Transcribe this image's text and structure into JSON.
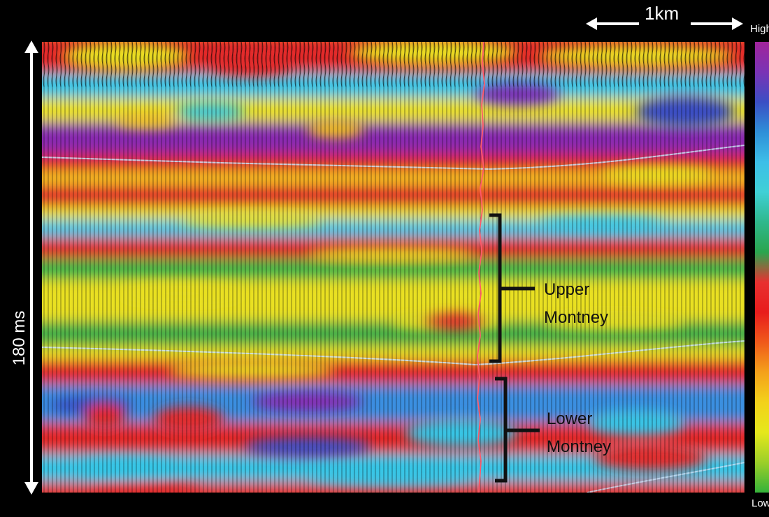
{
  "annotations": {
    "scale_bar": "1km",
    "time_scale": "180 ms",
    "colorbar_high": "High",
    "colorbar_low": "Low"
  },
  "zones": {
    "upper": [
      "Upper",
      "Montney"
    ],
    "lower": [
      "Lower",
      "Montney"
    ]
  },
  "colors": {
    "colorbar_top_to_bottom": [
      "#a1249b",
      "#7a33b5",
      "#3b4ec4",
      "#2f8fd8",
      "#3dbfe8",
      "#3fd0d6",
      "#2fb88c",
      "#2aa54e",
      "#e83030",
      "#e81c1c",
      "#f05a1a",
      "#f4a11a",
      "#f3d21a",
      "#e5e81c",
      "#9ccf28",
      "#34b23a"
    ],
    "well_trace": "#ff5a6a"
  }
}
